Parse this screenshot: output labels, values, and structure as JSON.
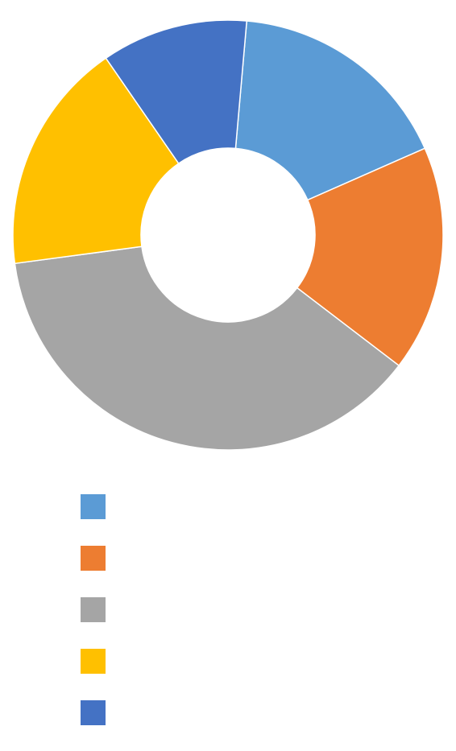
{
  "chart_data": {
    "type": "pie",
    "variant": "donut",
    "start_angle_deg": 5,
    "direction": "clockwise",
    "slices": [
      {
        "value": 17.0,
        "color": "#5b9bd5",
        "label": ""
      },
      {
        "value": 17.0,
        "color": "#ed7d31",
        "label": ""
      },
      {
        "value": 37.5,
        "color": "#a5a5a5",
        "label": ""
      },
      {
        "value": 17.5,
        "color": "#ffc000",
        "label": ""
      },
      {
        "value": 11.0,
        "color": "#4472c4",
        "label": ""
      }
    ],
    "legend": {
      "position": "bottom"
    }
  }
}
